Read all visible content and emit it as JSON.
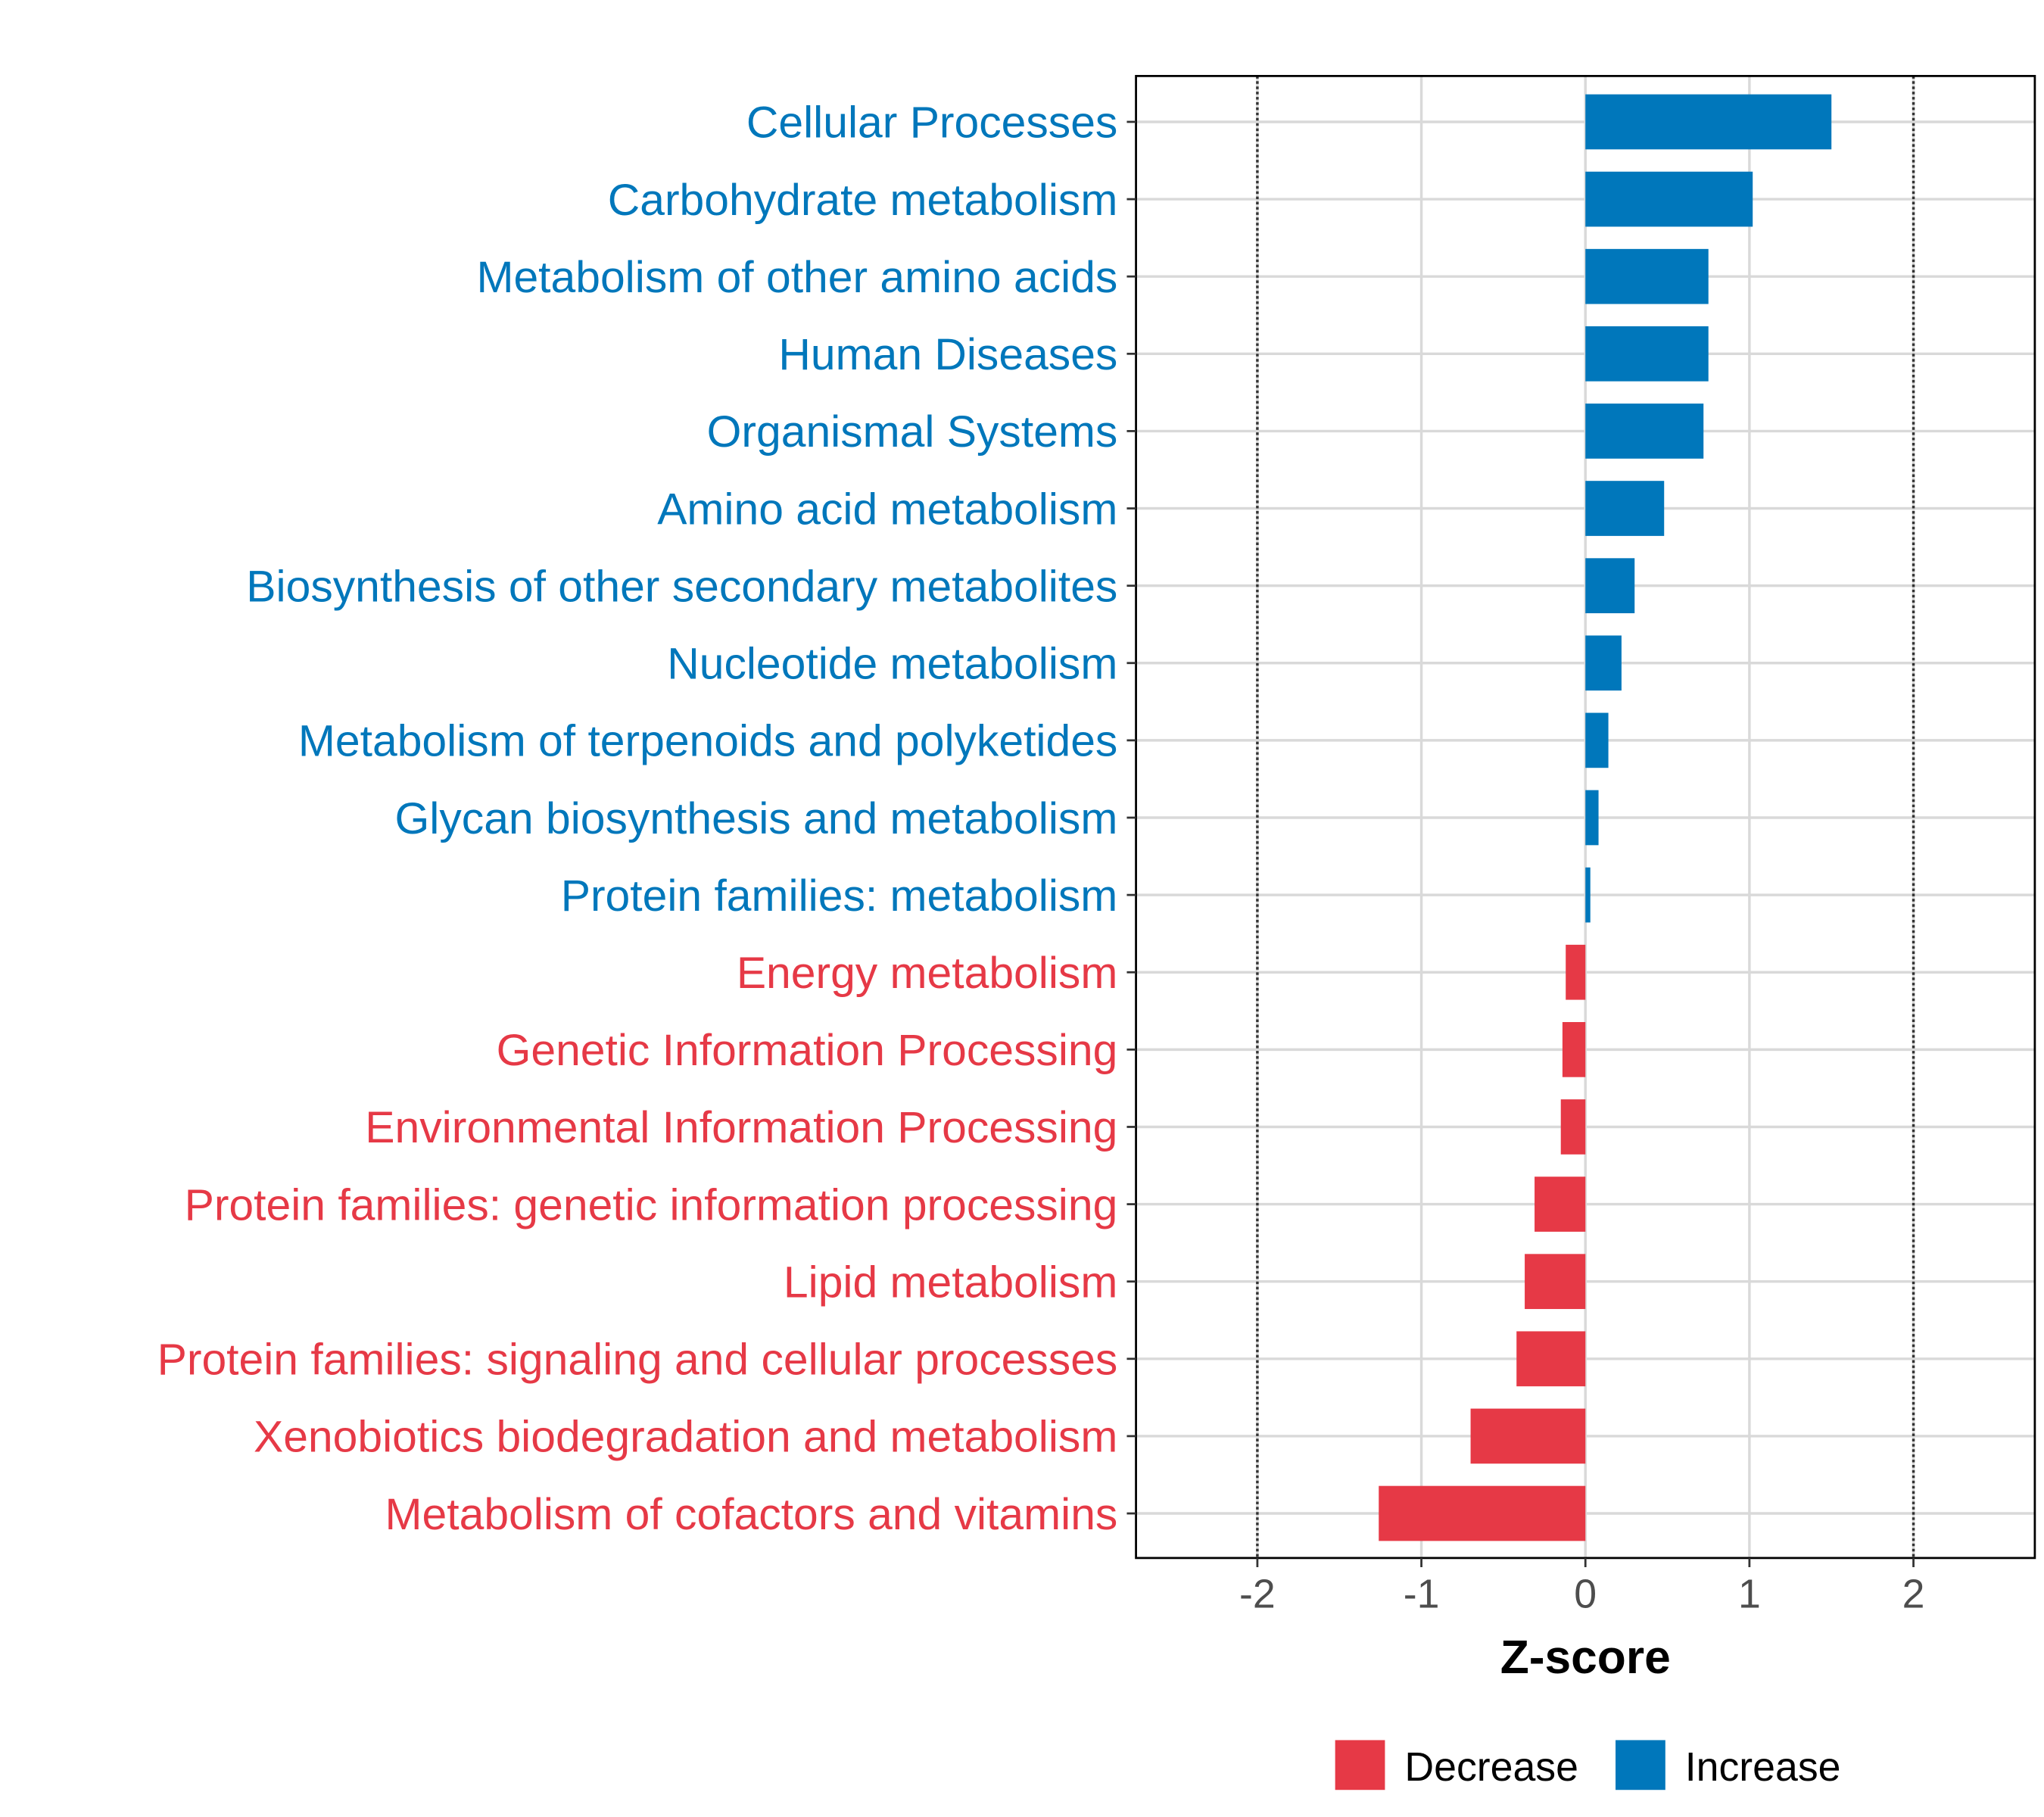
{
  "chart_data": {
    "type": "bar",
    "orientation": "horizontal",
    "title": "",
    "xlabel": "Z-score",
    "ylabel": "",
    "xlim": [
      -2.74,
      2.74
    ],
    "xticks": [
      -2,
      -1,
      0,
      1,
      2
    ],
    "xtick_labels": [
      "-2",
      "-1",
      "0",
      "1",
      "2"
    ],
    "reference_lines": [
      -2,
      2
    ],
    "grid": true,
    "categories": [
      "Cellular Processes",
      "Carbohydrate metabolism",
      "Metabolism of other amino acids",
      "Human Diseases",
      "Organismal Systems",
      "Amino acid metabolism",
      "Biosynthesis of other secondary metabolites",
      "Nucleotide metabolism",
      "Metabolism of terpenoids and polyketides",
      "Glycan biosynthesis and metabolism",
      "Protein families: metabolism",
      "Energy metabolism",
      "Genetic Information Processing",
      "Environmental Information Processing",
      "Protein families: genetic information processing",
      "Lipid metabolism",
      "Protein families: signaling and cellular processes",
      "Xenobiotics biodegradation and metabolism",
      "Metabolism of cofactors and vitamins"
    ],
    "values": [
      1.5,
      1.02,
      0.75,
      0.75,
      0.72,
      0.48,
      0.3,
      0.22,
      0.14,
      0.08,
      0.03,
      -0.12,
      -0.14,
      -0.15,
      -0.31,
      -0.37,
      -0.42,
      -0.7,
      -1.26
    ],
    "legend": {
      "placement": "bottom",
      "entries": [
        {
          "label": "Decrease",
          "color": "#E63946"
        },
        {
          "label": "Increase",
          "color": "#0077BB"
        }
      ]
    },
    "colors": {
      "increase": "#0077BB",
      "decrease": "#E63946",
      "grid": "#D9D9D9",
      "axis": "#000000",
      "tick_text": "#4D4D4D"
    }
  }
}
